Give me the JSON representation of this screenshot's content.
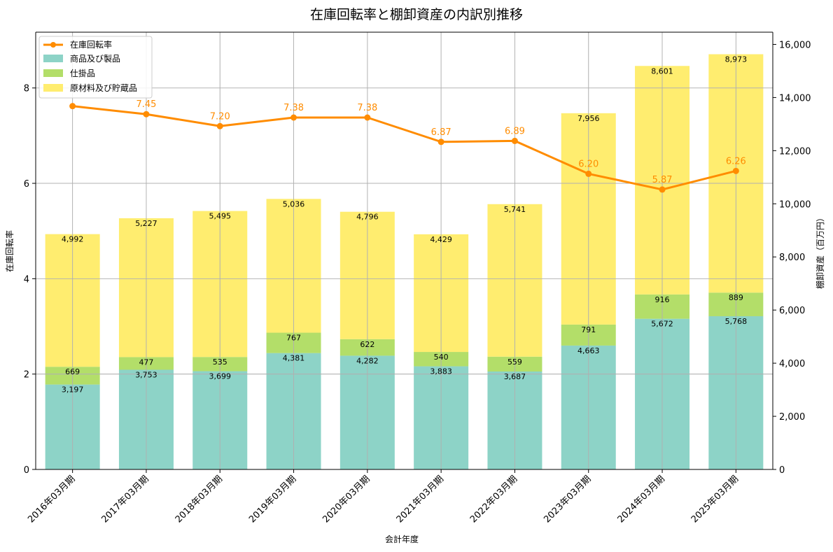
{
  "chart_data": {
    "type": "bar",
    "title": "在庫回転率と棚卸資産の内訳別推移",
    "xlabel": "会計年度",
    "ylabel_left": "在庫回転率",
    "ylabel_right": "棚卸資産（百万円）",
    "categories": [
      "2016年03月期",
      "2017年03月期",
      "2018年03月期",
      "2019年03月期",
      "2020年03月期",
      "2021年03月期",
      "2022年03月期",
      "2023年03月期",
      "2024年03月期",
      "2025年03月期"
    ],
    "ylim_left": [
      0,
      9.17
    ],
    "ylim_right": [
      0,
      16460
    ],
    "left_ticks": [
      0,
      2,
      4,
      6,
      8
    ],
    "right_ticks": [
      0,
      2000,
      4000,
      6000,
      8000,
      10000,
      12000,
      14000,
      16000
    ],
    "right_tick_labels": [
      "0",
      "2,000",
      "4,000",
      "6,000",
      "8,000",
      "10,000",
      "12,000",
      "14,000",
      "16,000"
    ],
    "grid": true,
    "legend_position": "top-left",
    "stacked_series": [
      {
        "name": "商品及び製品",
        "color": "#8dd3c7",
        "values": [
          3197,
          3753,
          3699,
          4381,
          4282,
          3883,
          3687,
          4663,
          5672,
          5768
        ],
        "labels": [
          "3,197",
          "3,753",
          "3,699",
          "4,381",
          "4,282",
          "3,883",
          "3,687",
          "4,663",
          "5,672",
          "5,768"
        ]
      },
      {
        "name": "仕掛品",
        "color": "#b3de69",
        "values": [
          669,
          477,
          535,
          767,
          622,
          540,
          559,
          791,
          916,
          889
        ],
        "labels": [
          "669",
          "477",
          "535",
          "767",
          "622",
          "540",
          "559",
          "791",
          "916",
          "889"
        ]
      },
      {
        "name": "原材料及び貯蔵品",
        "color": "#ffed6f",
        "values": [
          4992,
          5227,
          5495,
          5036,
          4796,
          4429,
          5741,
          7956,
          8601,
          8973
        ],
        "labels": [
          "4,992",
          "5,227",
          "5,495",
          "5,036",
          "4,796",
          "4,429",
          "5,741",
          "7,956",
          "8,601",
          "8,973"
        ]
      }
    ],
    "line_series": {
      "name": "在庫回転率",
      "color": "#ff8c00",
      "values": [
        7.62,
        7.45,
        7.2,
        7.38,
        7.38,
        6.87,
        6.89,
        6.2,
        5.87,
        6.26
      ],
      "labels": [
        "",
        "7.45",
        "7.20",
        "7.38",
        "7.38",
        "6.87",
        "6.89",
        "6.20",
        "5.87",
        "6.26"
      ]
    },
    "colors": {
      "grid": "#b0b0b0",
      "axis": "#000000"
    }
  }
}
